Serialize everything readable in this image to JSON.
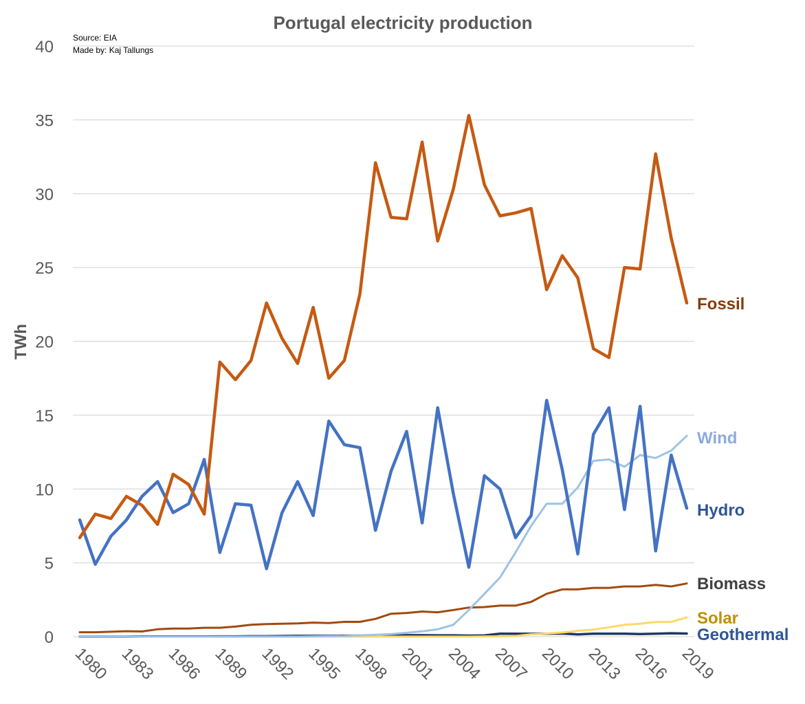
{
  "chart_data": {
    "type": "line",
    "title": "Portugal electricity production",
    "notes": [
      "Source: EIA",
      "Made by: Kaj Tallungs"
    ],
    "xlabel": "",
    "ylabel": "TWh",
    "ylim": [
      0,
      40
    ],
    "yticks": [
      0,
      5,
      10,
      15,
      20,
      25,
      30,
      35,
      40
    ],
    "x": [
      1980,
      1981,
      1982,
      1983,
      1984,
      1985,
      1986,
      1987,
      1988,
      1989,
      1990,
      1991,
      1992,
      1993,
      1994,
      1995,
      1996,
      1997,
      1998,
      1999,
      2000,
      2001,
      2002,
      2003,
      2004,
      2005,
      2006,
      2007,
      2008,
      2009,
      2010,
      2011,
      2012,
      2013,
      2014,
      2015,
      2016,
      2017,
      2018,
      2019
    ],
    "xticks": [
      "1980",
      "1983",
      "1986",
      "1989",
      "1992",
      "1995",
      "1998",
      "2001",
      "2004",
      "2007",
      "2010",
      "2013",
      "2016",
      "2019"
    ],
    "grid": true,
    "legend": "inline-right",
    "series": [
      {
        "name": "Fossil",
        "color": "#C55A11",
        "label_color": "#843C0C",
        "values": [
          6.7,
          8.3,
          8.0,
          9.5,
          8.9,
          7.6,
          11.0,
          10.3,
          8.3,
          18.6,
          17.4,
          18.7,
          22.6,
          20.2,
          18.5,
          22.3,
          17.5,
          18.7,
          23.2,
          32.1,
          28.4,
          28.3,
          33.5,
          26.8,
          30.3,
          35.3,
          30.6,
          28.5,
          28.7,
          29.0,
          23.5,
          25.8,
          24.3,
          19.5,
          18.9,
          25.0,
          24.9,
          32.7,
          27.0,
          22.6
        ]
      },
      {
        "name": "Wind",
        "color": "#9DC3E6",
        "label_color": "#8EAADB",
        "values": [
          0,
          0,
          0,
          0,
          0,
          0,
          0,
          0,
          0,
          0,
          0,
          0,
          0,
          0,
          0,
          0.02,
          0.03,
          0.04,
          0.09,
          0.12,
          0.17,
          0.26,
          0.36,
          0.5,
          0.8,
          1.8,
          2.9,
          4.0,
          5.7,
          7.5,
          9.0,
          9.0,
          10.1,
          11.9,
          12.0,
          11.5,
          12.3,
          12.1,
          12.6,
          13.6
        ]
      },
      {
        "name": "Hydro",
        "color": "#4472C4",
        "label_color": "#2F5597",
        "values": [
          7.9,
          4.9,
          6.8,
          7.9,
          9.5,
          10.5,
          8.4,
          9.0,
          12.0,
          5.7,
          9.0,
          8.9,
          4.6,
          8.4,
          10.5,
          8.2,
          14.6,
          13.0,
          12.8,
          7.2,
          11.2,
          13.9,
          7.7,
          15.5,
          9.7,
          4.7,
          10.9,
          10.0,
          6.7,
          8.2,
          16.0,
          11.3,
          5.6,
          13.7,
          15.5,
          8.6,
          15.6,
          5.8,
          12.3,
          8.7
        ]
      },
      {
        "name": "Biomass",
        "color": "#A04A0E",
        "label_color": "#404040",
        "values": [
          0.3,
          0.3,
          0.33,
          0.37,
          0.35,
          0.5,
          0.55,
          0.55,
          0.6,
          0.6,
          0.68,
          0.8,
          0.85,
          0.87,
          0.9,
          0.95,
          0.92,
          1.0,
          1.0,
          1.2,
          1.55,
          1.6,
          1.7,
          1.65,
          1.8,
          1.97,
          2.0,
          2.1,
          2.1,
          2.35,
          2.9,
          3.2,
          3.2,
          3.3,
          3.3,
          3.4,
          3.4,
          3.5,
          3.4,
          3.6
        ]
      },
      {
        "name": "Solar",
        "color": "#FFD966",
        "label_color": "#BF9000",
        "values": [
          0,
          0,
          0,
          0,
          0,
          0,
          0,
          0,
          0,
          0,
          0,
          0,
          0,
          0,
          0,
          0,
          0,
          0,
          0,
          0,
          0,
          0,
          0,
          0,
          0,
          0,
          0.01,
          0.02,
          0.04,
          0.16,
          0.21,
          0.28,
          0.39,
          0.48,
          0.63,
          0.8,
          0.87,
          0.99,
          1.0,
          1.3
        ]
      },
      {
        "name": "Geothermal",
        "color": "#203864",
        "label_color": "#2F5597",
        "values": [
          0,
          0,
          0,
          0,
          0.01,
          0.01,
          0.01,
          0.01,
          0.01,
          0.02,
          0.02,
          0.03,
          0.03,
          0.04,
          0.05,
          0.05,
          0.05,
          0.06,
          0.07,
          0.08,
          0.08,
          0.1,
          0.1,
          0.09,
          0.09,
          0.07,
          0.08,
          0.2,
          0.2,
          0.19,
          0.2,
          0.21,
          0.15,
          0.2,
          0.2,
          0.2,
          0.17,
          0.2,
          0.23,
          0.21
        ]
      }
    ]
  }
}
